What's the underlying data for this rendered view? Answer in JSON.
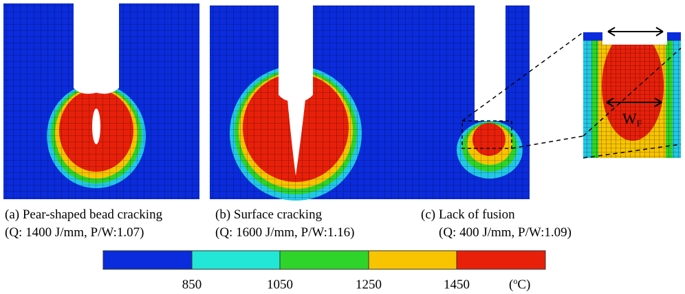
{
  "panels": [
    {
      "caption": "(a) Pear-shaped bead cracking",
      "condition": "(Q: 1400 J/mm, P/W:1.07)"
    },
    {
      "caption": "(b) Surface cracking",
      "condition": "(Q: 1600 J/mm, P/W:1.16)"
    },
    {
      "caption": "(c) Lack of fusion",
      "condition": "(Q: 400 J/mm, P/W:1.09)"
    }
  ],
  "inset": {
    "label": "W",
    "label_sub": "F"
  },
  "colorbar": {
    "ticks": [
      "850",
      "1050",
      "1250",
      "1450"
    ],
    "unit_open": "(",
    "unit_sup": "o",
    "unit_rest": "C)"
  }
}
